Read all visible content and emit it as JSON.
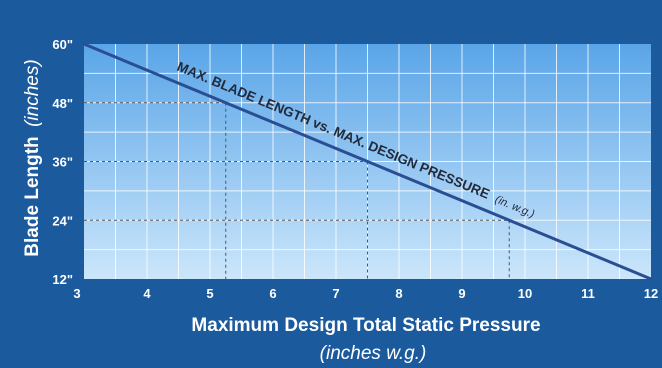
{
  "chart_data": {
    "type": "line",
    "x": [
      3,
      12
    ],
    "series": [
      {
        "values": [
          60,
          12
        ]
      }
    ],
    "xlabel": "Maximum Design Total Static Pressure",
    "xlabel_sub": "(inches w.g.)",
    "ylabel": "Blade Length",
    "ylabel_sub": "(inches)",
    "annotation": "MAX. BLADE LENGTH vs. MAX. DESIGN PRESSURE",
    "annotation_sub": "(in. w.g.)",
    "xlim": [
      3,
      12
    ],
    "ylim": [
      12,
      60
    ],
    "x_ticks": [
      3,
      4,
      5,
      6,
      7,
      8,
      9,
      10,
      11,
      12
    ],
    "x_tick_labels": [
      "3",
      "4",
      "5",
      "6",
      "7",
      "8",
      "9",
      "10",
      "11",
      "12"
    ],
    "y_ticks": [
      12,
      24,
      36,
      48,
      60
    ],
    "y_tick_labels": [
      "12\"",
      "24\"",
      "36\"",
      "48\"",
      "60\""
    ],
    "grid": true,
    "reference_points": [
      {
        "x": 5.25,
        "y": 48
      },
      {
        "x": 7.5,
        "y": 36
      },
      {
        "x": 9.75,
        "y": 24
      }
    ],
    "colors": {
      "background": "#1c5a9e",
      "plot_top": "#5aa5e8",
      "plot_bottom": "#cbe6fb",
      "line": "#2a4e94",
      "reference": "#555555",
      "text": "#ffffff",
      "annotation": "#222a3c"
    }
  }
}
